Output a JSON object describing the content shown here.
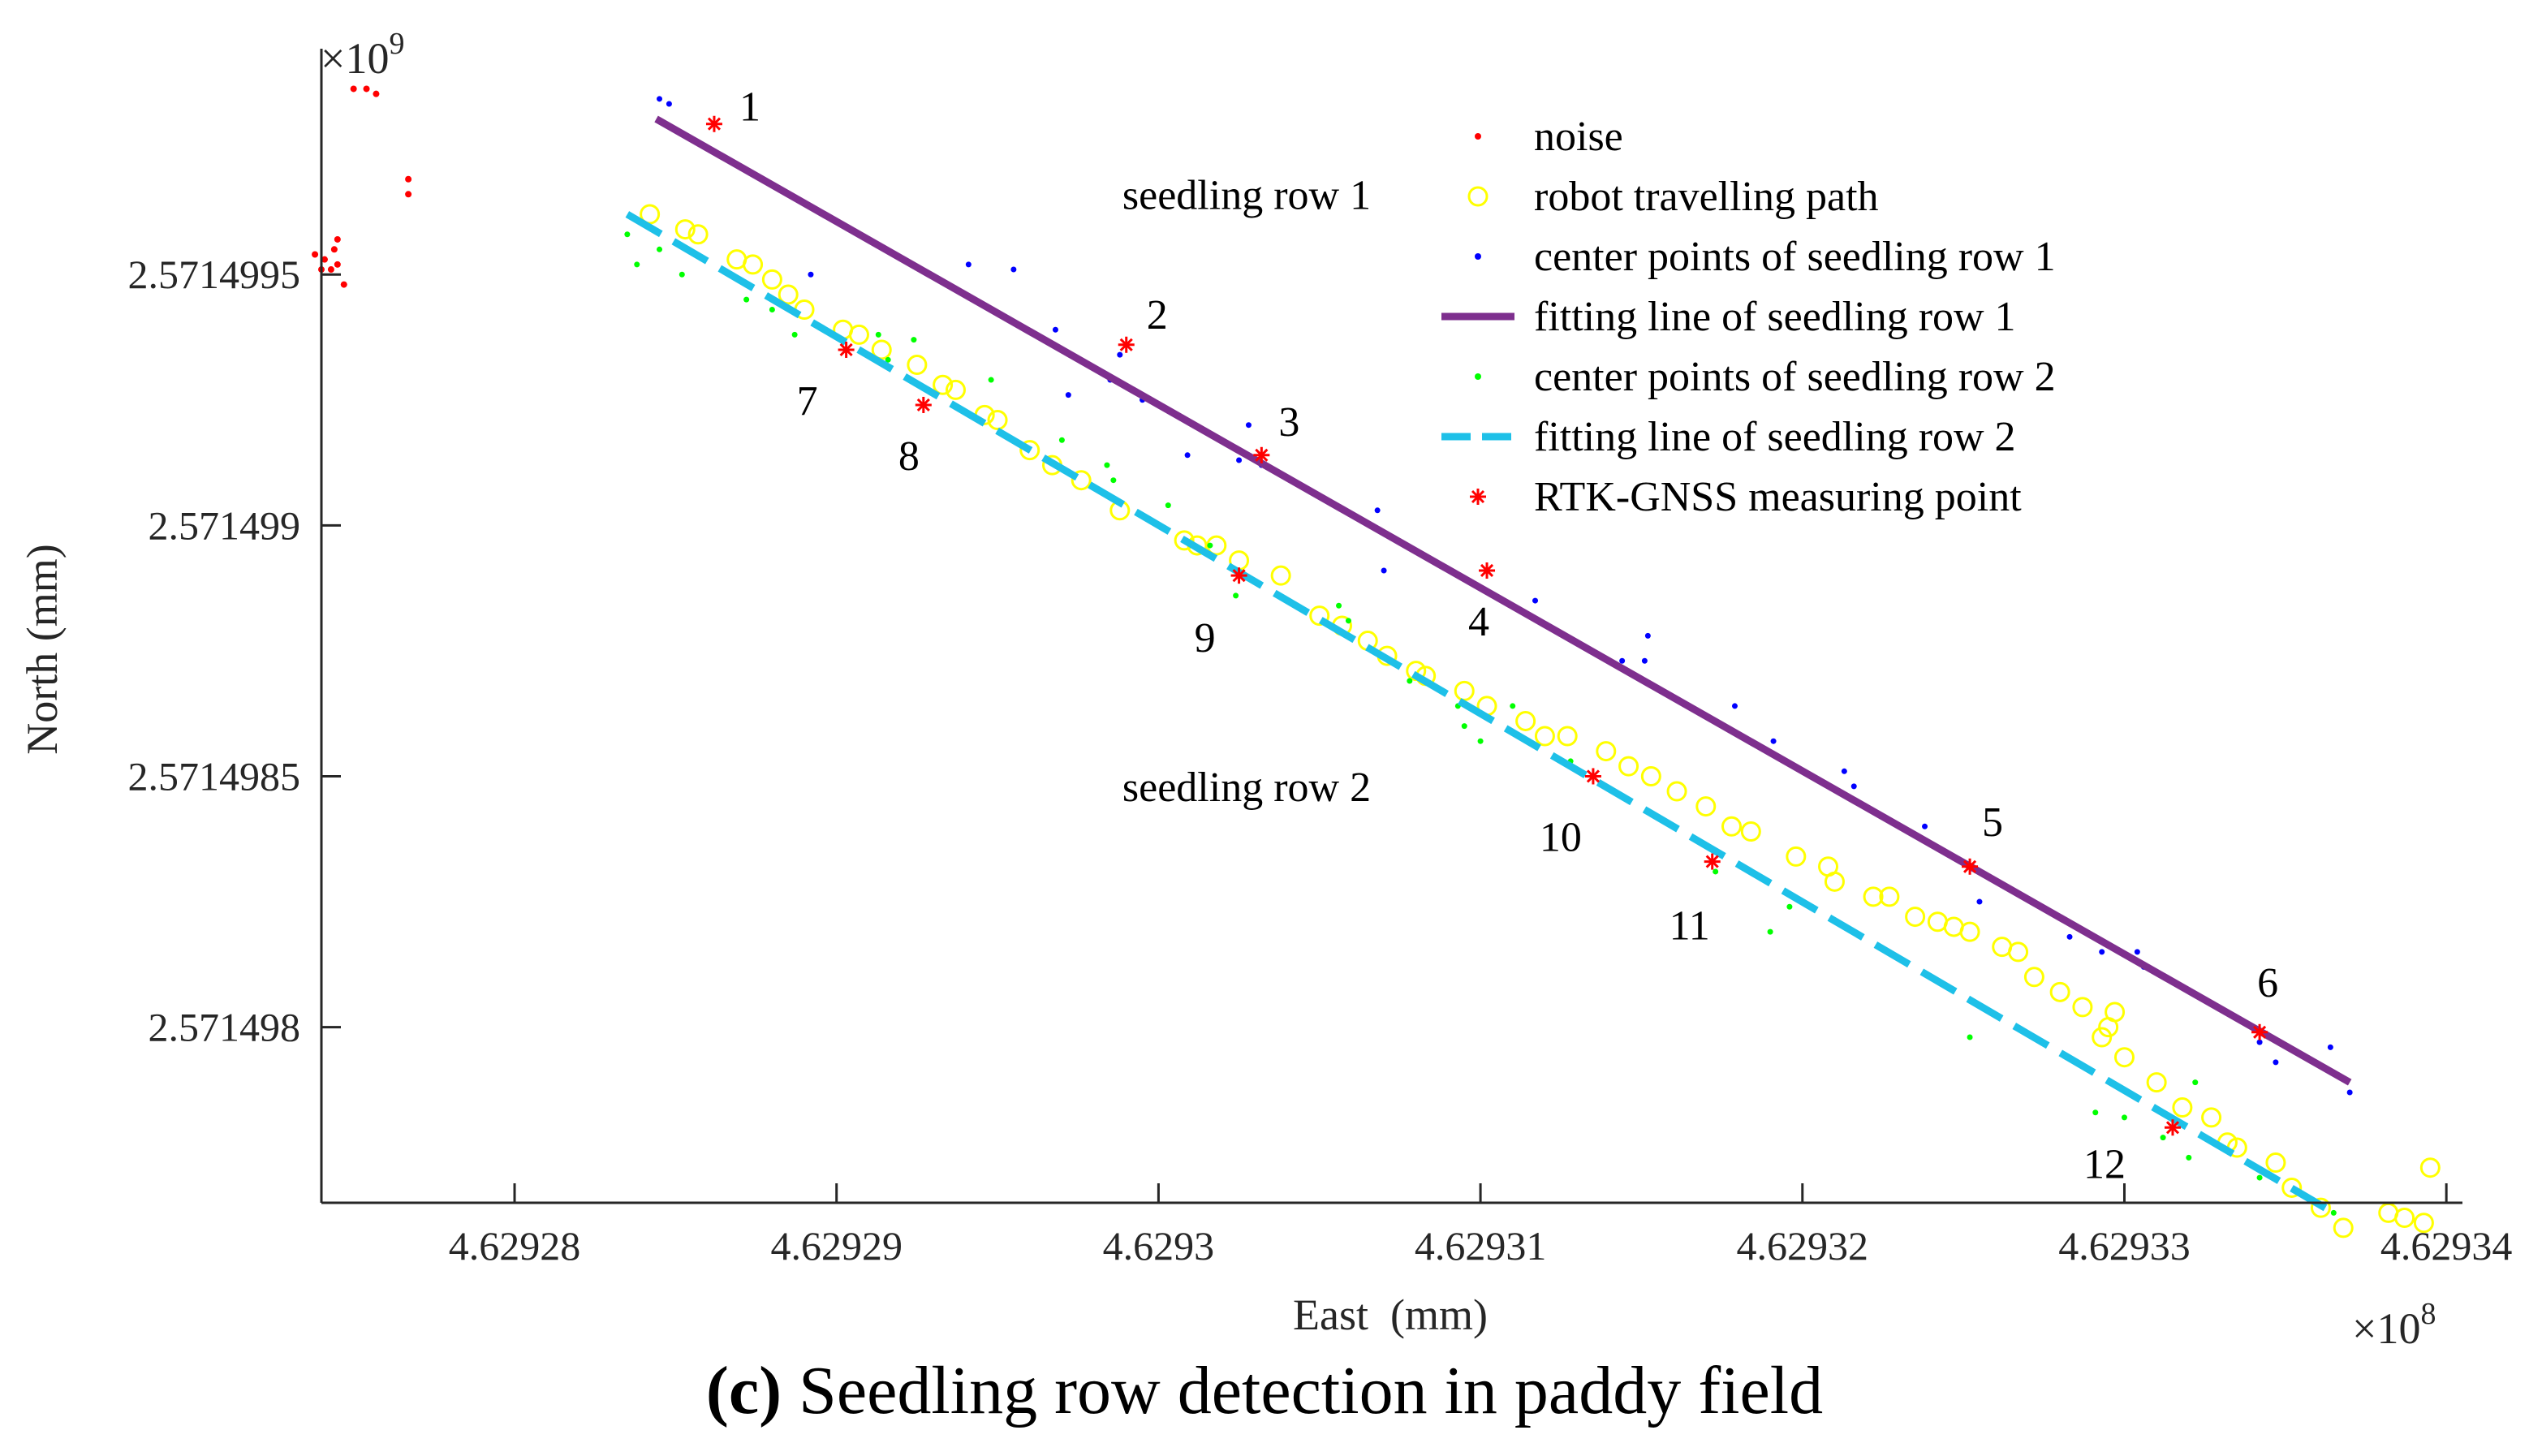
{
  "chart_data": {
    "type": "scatter",
    "x_axis": {
      "label": "East  (mm)",
      "range": [
        462927.4,
        462934.05
      ],
      "ticks": [
        462928,
        462929,
        462930,
        462931,
        462932,
        462933,
        462934
      ],
      "tick_labels": [
        "4.62928",
        "4.62929",
        "4.6293",
        "4.62931",
        "4.62932",
        "4.62933",
        "4.62934"
      ],
      "exponent": "×10",
      "exponent_power": "8"
    },
    "y_axis": {
      "label": "North (mm)",
      "range": [
        2571497.65,
        2571499.95
      ],
      "ticks": [
        2571498.0,
        2571498.5,
        2571499.0,
        2571499.5
      ],
      "tick_labels": [
        "2.571498",
        "2.5714985",
        "2.571499",
        "2.5714995"
      ],
      "exponent": "×10",
      "exponent_power": "9"
    },
    "colors": {
      "noise": "#ff0000",
      "path": "#ffff00",
      "row1_points": "#0000ff",
      "row1_line": "#7e2f8e",
      "row2_points": "#00ff00",
      "row2_line": "#1ec0e8",
      "rtk": "#ff0000"
    },
    "series": [
      {
        "name": "noise",
        "marker": "dot",
        "x": [
          462927.5,
          462927.54,
          462927.57,
          462927.67,
          462927.67,
          462927.4,
          462927.45,
          462927.47,
          462927.44,
          462927.41,
          462927.45,
          462927.38,
          462927.43
        ],
        "y": [
          2571499.87,
          2571499.87,
          2571499.86,
          2571499.69,
          2571499.66,
          2571499.51,
          2571499.52,
          2571499.48,
          2571499.55,
          2571499.53,
          2571499.57,
          2571499.54,
          2571499.51
        ]
      },
      {
        "name": "robot travelling path",
        "marker": "circle",
        "x": [
          462928.42,
          462928.53,
          462928.57,
          462928.69,
          462928.74,
          462928.8,
          462928.85,
          462928.9,
          462929.02,
          462929.07,
          462929.14,
          462929.25,
          462929.33,
          462929.37,
          462929.46,
          462929.5,
          462929.6,
          462929.67,
          462929.76,
          462929.88,
          462930.08,
          462930.12,
          462930.18,
          462930.25,
          462930.38,
          462930.5,
          462930.57,
          462930.65,
          462930.71,
          462930.8,
          462930.83,
          462930.95,
          462931.02,
          462931.14,
          462931.2,
          462931.27,
          462931.39,
          462931.46,
          462931.53,
          462931.61,
          462931.7,
          462931.78,
          462931.84,
          462931.98,
          462932.08,
          462932.1,
          462932.22,
          462932.27,
          462932.35,
          462932.42,
          462932.47,
          462932.52,
          462932.62,
          462932.67,
          462932.72,
          462932.8,
          462932.87,
          462932.97,
          462932.95,
          462932.93,
          462933.0,
          462933.1,
          462933.18,
          462933.27,
          462933.32,
          462933.35,
          462933.47,
          462933.52,
          462933.61,
          462933.68,
          462933.82,
          462933.87,
          462933.93,
          462933.95
        ],
        "y": [
          2571499.62,
          2571499.59,
          2571499.58,
          2571499.53,
          2571499.52,
          2571499.49,
          2571499.46,
          2571499.43,
          2571499.39,
          2571499.38,
          2571499.35,
          2571499.32,
          2571499.28,
          2571499.27,
          2571499.22,
          2571499.21,
          2571499.15,
          2571499.12,
          2571499.09,
          2571499.03,
          2571498.97,
          2571498.96,
          2571498.96,
          2571498.93,
          2571498.9,
          2571498.82,
          2571498.8,
          2571498.77,
          2571498.74,
          2571498.71,
          2571498.7,
          2571498.67,
          2571498.64,
          2571498.61,
          2571498.58,
          2571498.58,
          2571498.55,
          2571498.52,
          2571498.5,
          2571498.47,
          2571498.44,
          2571498.4,
          2571498.39,
          2571498.34,
          2571498.32,
          2571498.29,
          2571498.26,
          2571498.26,
          2571498.22,
          2571498.21,
          2571498.2,
          2571498.19,
          2571498.16,
          2571498.15,
          2571498.1,
          2571498.07,
          2571498.04,
          2571498.03,
          2571498.0,
          2571497.98,
          2571497.94,
          2571497.89,
          2571497.84,
          2571497.82,
          2571497.77,
          2571497.76,
          2571497.73,
          2571497.68,
          2571497.64,
          2571497.6,
          2571497.63,
          2571497.62,
          2571497.61,
          2571497.72
        ]
      },
      {
        "name": "center points of seedling row 1",
        "marker": "dot",
        "x": [
          462928.45,
          462928.48,
          462928.92,
          462929.41,
          462929.55,
          462929.68,
          462929.72,
          462929.85,
          462929.88,
          462929.95,
          462930.09,
          462930.28,
          462930.25,
          462930.32,
          462930.68,
          462930.7,
          462931.17,
          462931.26,
          462931.44,
          462931.51,
          462931.52,
          462931.79,
          462931.91,
          462932.13,
          462932.16,
          462932.38,
          462932.55,
          462932.83,
          462932.93,
          462933.04,
          462933.06,
          462933.42,
          462933.47,
          462933.64,
          462933.7
        ],
        "y": [
          2571499.85,
          2571499.84,
          2571499.5,
          2571499.52,
          2571499.51,
          2571499.39,
          2571499.26,
          2571499.29,
          2571499.34,
          2571499.25,
          2571499.14,
          2571499.2,
          2571499.13,
          2571499.12,
          2571499.03,
          2571498.91,
          2571498.85,
          2571498.78,
          2571498.73,
          2571498.73,
          2571498.78,
          2571498.64,
          2571498.57,
          2571498.51,
          2571498.48,
          2571498.4,
          2571498.25,
          2571498.18,
          2571498.15,
          2571498.15,
          2571498.12,
          2571497.97,
          2571497.93,
          2571497.96,
          2571497.87
        ]
      },
      {
        "name": "center points of seedling row 2",
        "marker": "dot",
        "x": [
          462928.35,
          462928.38,
          462928.45,
          462928.52,
          462928.72,
          462928.8,
          462928.87,
          462929.13,
          462929.16,
          462929.24,
          462929.48,
          462929.7,
          462929.84,
          462929.86,
          462930.03,
          462930.16,
          462930.24,
          462930.56,
          462930.59,
          462930.78,
          462930.93,
          462930.95,
          462931.0,
          462931.1,
          462931.28,
          462931.73,
          462931.9,
          462931.96,
          462932.52,
          462932.91,
          462933.0,
          462933.12,
          462933.2,
          462933.22,
          462933.42,
          462933.65
        ],
        "y": [
          2571499.58,
          2571499.52,
          2571499.55,
          2571499.5,
          2571499.45,
          2571499.43,
          2571499.38,
          2571499.38,
          2571499.33,
          2571499.37,
          2571499.29,
          2571499.17,
          2571499.12,
          2571499.09,
          2571499.04,
          2571498.96,
          2571498.86,
          2571498.84,
          2571498.81,
          2571498.69,
          2571498.64,
          2571498.6,
          2571498.57,
          2571498.64,
          2571498.53,
          2571498.31,
          2571498.19,
          2571498.24,
          2571497.98,
          2571497.83,
          2571497.82,
          2571497.78,
          2571497.74,
          2571497.89,
          2571497.7,
          2571497.63
        ]
      },
      {
        "name": "RTK-GNSS measuring point",
        "marker": "asterisk",
        "x": [
          462928.62,
          462929.9,
          462930.32,
          462931.02,
          462932.52,
          462933.42,
          462929.03,
          462929.27,
          462930.25,
          462931.35,
          462931.72,
          462933.15
        ],
        "y": [
          2571499.8,
          2571499.36,
          2571499.14,
          2571498.91,
          2571498.32,
          2571497.99,
          2571499.35,
          2571499.24,
          2571498.9,
          2571498.5,
          2571498.33,
          2571497.8
        ],
        "labels": [
          "1",
          "2",
          "3",
          "4",
          "5",
          "6",
          "7",
          "8",
          "9",
          "10",
          "11",
          "12"
        ]
      },
      {
        "name": "fitting line of seedling row 1",
        "marker": "line",
        "style": "solid",
        "x": [
          462928.44,
          462933.7
        ],
        "y": [
          2571499.81,
          2571497.89
        ]
      },
      {
        "name": "fitting line of seedling row 2",
        "marker": "line",
        "style": "dashed",
        "x": [
          462928.35,
          462933.65
        ],
        "y": [
          2571499.62,
          2571497.63
        ]
      }
    ],
    "legend": {
      "position": "top-right",
      "entries": [
        "noise",
        "robot travelling path",
        "center points of seedling row 1",
        "fitting line of seedling row 1",
        "center points of seedling row 2",
        "fitting line of seedling row 2",
        "RTK-GNSS measuring point"
      ]
    },
    "annotations": [
      {
        "text": "seedling row 1",
        "x": 462929.82,
        "y": 2571499.66
      },
      {
        "text": "seedling row 2",
        "x": 462929.82,
        "y": 2571498.48
      }
    ]
  },
  "caption": {
    "label": "(c)",
    "text": " Seedling row detection in paddy field"
  }
}
